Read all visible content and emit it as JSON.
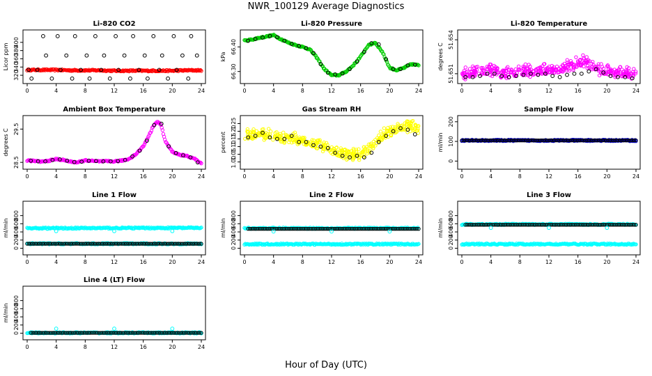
{
  "page": {
    "title": "NWR_100129  Average Diagnostics",
    "x_label": "Hour of Day (UTC)"
  },
  "colors": {
    "axis": "#000000",
    "black": "#000000",
    "red": "#ff0000",
    "green": "#00cc00",
    "magenta": "#ff00ff",
    "yellow": "#ffff00",
    "cyan": "#00ffff",
    "blue": "#0000ff"
  },
  "chart_data": [
    {
      "id": "co2",
      "type": "scatter",
      "title": "Li-820 CO2",
      "ylabel": "Licor ppm",
      "xlim": [
        0,
        24
      ],
      "ylim": [
        310,
        420
      ],
      "xticks": [
        0,
        4,
        8,
        12,
        16,
        20,
        24
      ],
      "yticks": [
        320,
        340,
        360,
        380,
        400
      ],
      "series": [
        {
          "name": "fine",
          "color": "red",
          "style": "dense",
          "x": [
            0,
            2,
            4,
            6,
            8,
            10,
            12,
            14,
            16,
            18,
            20,
            22,
            24
          ],
          "y": [
            333,
            333,
            333,
            332,
            332,
            332,
            331,
            331,
            331,
            331,
            331,
            332,
            332
          ]
        },
        {
          "name": "avg",
          "color": "black",
          "style": "open",
          "x": [
            0.2,
            0.6,
            1.4,
            2.2,
            2.6,
            3.4,
            4.2,
            4.6,
            5.4,
            6.2,
            6.6,
            7.4,
            8.2,
            8.6,
            9.4,
            10.2,
            10.6,
            11.4,
            12.2,
            12.6,
            13.4,
            14.2,
            14.6,
            15.4,
            16.2,
            16.6,
            17.4,
            18.2,
            18.6,
            19.4,
            20.2,
            20.6,
            21.4,
            22.2,
            22.6,
            23.4
          ],
          "y": [
            333,
            312,
            333,
            415,
            368,
            312,
            415,
            333,
            368,
            312,
            415,
            333,
            368,
            312,
            415,
            333,
            368,
            312,
            415,
            333,
            368,
            312,
            415,
            333,
            368,
            312,
            415,
            333,
            368,
            312,
            415,
            333,
            368,
            312,
            415,
            368
          ]
        }
      ]
    },
    {
      "id": "pressure",
      "type": "scatter",
      "title": "Li-820 Pressure",
      "ylabel": "kPa",
      "xlim": [
        0,
        24
      ],
      "ylim": [
        66.268,
        66.452
      ],
      "xticks": [
        0,
        4,
        8,
        12,
        16,
        20,
        24
      ],
      "yticks": [
        66.3,
        66.4
      ],
      "ytick_labels": [
        "66.30",
        "66.40"
      ],
      "series": [
        {
          "name": "fine",
          "color": "green",
          "style": "dense",
          "x": [
            0,
            1,
            2,
            3,
            4,
            5,
            6,
            7,
            8,
            9,
            10,
            11,
            12,
            13,
            14,
            15,
            16,
            17,
            18,
            19,
            20,
            21,
            22,
            23,
            24
          ],
          "y": [
            66.425,
            66.43,
            66.437,
            66.442,
            66.448,
            66.432,
            66.418,
            66.408,
            66.4,
            66.39,
            66.355,
            66.31,
            66.285,
            66.285,
            66.3,
            66.325,
            66.36,
            66.405,
            66.418,
            66.38,
            66.315,
            66.305,
            66.315,
            66.33,
            66.325
          ]
        },
        {
          "name": "avg",
          "color": "black",
          "style": "open",
          "x": [
            0.5,
            1.5,
            2.5,
            3.5,
            4.5,
            5.5,
            6.5,
            7.5,
            8.5,
            9.5,
            10.5,
            11.5,
            12.5,
            13.5,
            14.5,
            15.5,
            16.5,
            17.5,
            18.5,
            19.5,
            20.5,
            21.5,
            22.5,
            23.5
          ],
          "y": [
            66.425,
            66.432,
            66.438,
            66.444,
            66.44,
            66.425,
            66.412,
            66.404,
            66.395,
            66.375,
            66.33,
            66.295,
            66.288,
            66.292,
            66.31,
            66.34,
            66.38,
            66.415,
            66.41,
            66.35,
            66.31,
            66.31,
            66.325,
            66.328
          ]
        }
      ]
    },
    {
      "id": "licor_temp",
      "type": "scatter",
      "title": "Li-820 Temperature",
      "ylabel": "degrees C",
      "xlim": [
        0,
        24
      ],
      "ylim": [
        51.6505,
        51.6545
      ],
      "xticks": [
        0,
        4,
        8,
        12,
        16,
        20,
        24
      ],
      "yticks": [
        51.651,
        51.654
      ],
      "ytick_labels": [
        "51.651",
        "51.654"
      ],
      "series": [
        {
          "name": "fine",
          "color": "magenta",
          "style": "scatter-noise",
          "x": [
            0,
            1,
            2,
            3,
            4,
            5,
            6,
            7,
            8,
            9,
            10,
            11,
            12,
            13,
            14,
            15,
            16,
            17,
            18,
            19,
            20,
            21,
            22,
            23,
            24
          ],
          "y": [
            51.6508,
            51.6509,
            51.651,
            51.6511,
            51.6512,
            51.651,
            51.6509,
            51.651,
            51.6511,
            51.6511,
            51.6511,
            51.6512,
            51.6512,
            51.6513,
            51.6514,
            51.6516,
            51.6518,
            51.652,
            51.6516,
            51.6512,
            51.6511,
            51.651,
            51.6509,
            51.6509,
            51.6508
          ]
        },
        {
          "name": "avg",
          "color": "black",
          "style": "open",
          "x": [
            0.5,
            1.5,
            2.5,
            3.5,
            4.5,
            5.5,
            6.5,
            7.5,
            8.5,
            9.5,
            10.5,
            11.5,
            12.5,
            13.5,
            14.5,
            15.5,
            16.5,
            17.5,
            18.5,
            19.5,
            20.5,
            21.5,
            22.5,
            23.5
          ],
          "y": [
            51.6507,
            51.6507,
            51.6508,
            51.651,
            51.651,
            51.6508,
            51.6507,
            51.6508,
            51.6509,
            51.651,
            51.6509,
            51.651,
            51.6508,
            51.6507,
            51.6509,
            51.651,
            51.651,
            51.6512,
            51.6514,
            51.6511,
            51.6508,
            51.6507,
            51.6507,
            51.6506
          ]
        }
      ]
    },
    {
      "id": "box_temp",
      "type": "scatter",
      "title": "Ambient Box Temperature",
      "ylabel": "degrees C",
      "xlim": [
        0,
        24
      ],
      "ylim": [
        28.42,
        29.78
      ],
      "xticks": [
        0,
        4,
        8,
        12,
        16,
        20,
        24
      ],
      "yticks": [
        28.5,
        29.5
      ],
      "ytick_labels": [
        "28.5",
        "29.5"
      ],
      "series": [
        {
          "name": "fine",
          "color": "magenta",
          "style": "dense",
          "x": [
            0,
            1,
            2,
            3,
            4,
            5,
            6,
            7,
            8,
            9,
            10,
            11,
            12,
            13,
            14,
            15,
            16,
            17,
            17.5,
            18,
            18.5,
            19,
            20,
            21,
            22,
            23,
            24
          ],
          "y": [
            28.56,
            28.54,
            28.52,
            28.55,
            28.6,
            28.57,
            28.52,
            28.5,
            28.56,
            28.54,
            28.53,
            28.53,
            28.53,
            28.55,
            28.6,
            28.75,
            28.98,
            29.4,
            29.65,
            29.72,
            29.6,
            29.15,
            28.82,
            28.73,
            28.69,
            28.62,
            28.46
          ]
        },
        {
          "name": "avg",
          "color": "black",
          "style": "open",
          "x": [
            0.5,
            1.5,
            2.5,
            3.5,
            4.5,
            5.5,
            6.5,
            7.5,
            8.5,
            9.5,
            10.5,
            11.5,
            12.5,
            13.5,
            14.5,
            15.5,
            16.5,
            17.5,
            18.5,
            19.5,
            20.5,
            21.5,
            22.5,
            23.5
          ],
          "y": [
            28.55,
            28.53,
            28.53,
            28.57,
            28.59,
            28.55,
            28.51,
            28.52,
            28.55,
            28.54,
            28.53,
            28.53,
            28.54,
            28.57,
            28.68,
            28.85,
            29.15,
            29.62,
            29.66,
            28.98,
            28.78,
            28.71,
            28.65,
            28.5
          ]
        }
      ]
    },
    {
      "id": "rh",
      "type": "scatter",
      "title": "Gas Stream RH",
      "ylabel": "percent",
      "xlim": [
        0,
        24
      ],
      "ylim": [
        0.98,
        1.275
      ],
      "xticks": [
        0,
        4,
        8,
        12,
        16,
        20,
        24
      ],
      "yticks": [
        1.0,
        1.05,
        1.1,
        1.15,
        1.2,
        1.25
      ],
      "ytick_labels": [
        "1.00",
        "1.05",
        "1.10",
        "1.15",
        "1.20",
        "1.25"
      ],
      "series": [
        {
          "name": "fine",
          "color": "yellow",
          "style": "scatter-noise",
          "x": [
            0,
            1,
            2,
            3,
            4,
            5,
            6,
            7,
            8,
            9,
            10,
            11,
            12,
            13,
            14,
            15,
            16,
            17,
            18,
            19,
            20,
            21,
            22,
            23,
            24
          ],
          "y": [
            1.16,
            1.17,
            1.18,
            1.17,
            1.16,
            1.15,
            1.15,
            1.14,
            1.13,
            1.12,
            1.11,
            1.09,
            1.07,
            1.05,
            1.04,
            1.04,
            1.04,
            1.07,
            1.12,
            1.16,
            1.19,
            1.21,
            1.22,
            1.23,
            1.21
          ]
        },
        {
          "name": "avg",
          "color": "black",
          "style": "open",
          "x": [
            0.5,
            1.5,
            2.5,
            3.5,
            4.5,
            5.5,
            6.5,
            7.5,
            8.5,
            9.5,
            10.5,
            11.5,
            12.5,
            13.5,
            14.5,
            15.5,
            16.5,
            17.5,
            18.5,
            19.5,
            20.5,
            21.5,
            22.5,
            23.5
          ],
          "y": [
            1.16,
            1.17,
            1.19,
            1.16,
            1.15,
            1.15,
            1.17,
            1.13,
            1.13,
            1.11,
            1.1,
            1.09,
            1.06,
            1.04,
            1.03,
            1.04,
            1.03,
            1.06,
            1.13,
            1.17,
            1.2,
            1.22,
            1.21,
            1.18
          ]
        }
      ]
    },
    {
      "id": "sample_flow",
      "type": "scatter",
      "title": "Sample Flow",
      "ylabel": "ml/min",
      "xlim": [
        0,
        24
      ],
      "ylim": [
        -20,
        210
      ],
      "xticks": [
        0,
        4,
        8,
        12,
        16,
        20,
        24
      ],
      "yticks": [
        0,
        100,
        200
      ],
      "series": [
        {
          "name": "fine",
          "color": "blue",
          "style": "dense",
          "x": [
            0,
            24
          ],
          "y": [
            105,
            105
          ]
        },
        {
          "name": "avg",
          "color": "black",
          "style": "open-dense",
          "x": [
            0,
            24
          ],
          "y": [
            105,
            105
          ]
        }
      ]
    },
    {
      "id": "line1",
      "type": "scatter",
      "title": "Line 1 Flow",
      "ylabel": "ml/min",
      "xlim": [
        0,
        24
      ],
      "ylim": [
        -60,
        1050
      ],
      "xticks": [
        0,
        4,
        8,
        12,
        16,
        20,
        24
      ],
      "yticks": [
        0,
        200,
        400,
        600,
        800
      ],
      "series": [
        {
          "name": "fine-high",
          "color": "cyan",
          "style": "dense",
          "x": [
            0,
            24
          ],
          "y": [
            490,
            500
          ]
        },
        {
          "name": "fine-low",
          "color": "cyan",
          "style": "dense",
          "x": [
            0,
            24
          ],
          "y": [
            110,
            110
          ]
        },
        {
          "name": "avg",
          "color": "black",
          "style": "open-dense",
          "x": [
            0,
            24
          ],
          "y": [
            110,
            110
          ]
        },
        {
          "name": "outliers",
          "color": "cyan",
          "style": "open",
          "x": [
            4,
            12,
            20
          ],
          "y": [
            420,
            420,
            420
          ]
        }
      ]
    },
    {
      "id": "line2",
      "type": "scatter",
      "title": "Line 2 Flow",
      "ylabel": "ml/min",
      "xlim": [
        0,
        24
      ],
      "ylim": [
        -60,
        1050
      ],
      "xticks": [
        0,
        4,
        8,
        12,
        16,
        20,
        24
      ],
      "yticks": [
        0,
        200,
        400,
        600,
        800
      ],
      "series": [
        {
          "name": "fine-high",
          "color": "cyan",
          "style": "dense",
          "x": [
            0,
            24
          ],
          "y": [
            490,
            490
          ]
        },
        {
          "name": "fine-low",
          "color": "cyan",
          "style": "dense",
          "x": [
            0,
            24
          ],
          "y": [
            100,
            100
          ]
        },
        {
          "name": "avg",
          "color": "black",
          "style": "open-dense",
          "x": [
            0.5,
            24
          ],
          "y": [
            475,
            475
          ]
        },
        {
          "name": "outliers",
          "color": "cyan",
          "style": "open",
          "x": [
            4,
            12,
            20
          ],
          "y": [
            410,
            410,
            410
          ]
        }
      ]
    },
    {
      "id": "line3",
      "type": "scatter",
      "title": "Line 3 Flow",
      "ylabel": "ml/min",
      "xlim": [
        0,
        24
      ],
      "ylim": [
        -60,
        1050
      ],
      "xticks": [
        0,
        4,
        8,
        12,
        16,
        20,
        24
      ],
      "yticks": [
        0,
        200,
        400,
        600,
        800
      ],
      "series": [
        {
          "name": "fine-high",
          "color": "cyan",
          "style": "dense",
          "x": [
            0,
            24
          ],
          "y": [
            585,
            585
          ]
        },
        {
          "name": "fine-low",
          "color": "cyan",
          "style": "dense",
          "x": [
            0,
            24
          ],
          "y": [
            100,
            100
          ]
        },
        {
          "name": "avg",
          "color": "black",
          "style": "open-dense",
          "x": [
            0.5,
            24
          ],
          "y": [
            575,
            575
          ]
        },
        {
          "name": "outliers",
          "color": "cyan",
          "style": "open",
          "x": [
            4,
            12,
            20
          ],
          "y": [
            500,
            500,
            500
          ]
        }
      ]
    },
    {
      "id": "line4",
      "type": "scatter",
      "title": "Line 4 (LT) Flow",
      "ylabel": "ml/min",
      "xlim": [
        0,
        24
      ],
      "ylim": [
        -60,
        1050
      ],
      "xticks": [
        0,
        4,
        8,
        12,
        16,
        20,
        24
      ],
      "yticks": [
        0,
        200,
        400,
        600,
        800
      ],
      "series": [
        {
          "name": "fine",
          "color": "cyan",
          "style": "dense",
          "x": [
            0,
            24
          ],
          "y": [
            8,
            8
          ]
        },
        {
          "name": "avg",
          "color": "black",
          "style": "open-dense",
          "x": [
            0.5,
            24
          ],
          "y": [
            8,
            8
          ]
        },
        {
          "name": "outliers",
          "color": "cyan",
          "style": "open",
          "x": [
            4,
            12,
            20
          ],
          "y": [
            110,
            110,
            110
          ]
        }
      ]
    }
  ]
}
